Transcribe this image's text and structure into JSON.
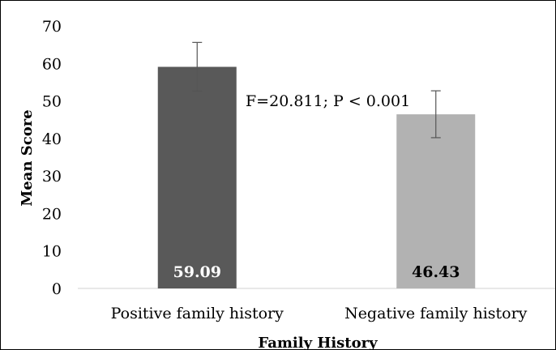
{
  "chart_data": {
    "type": "bar",
    "categories": [
      "Positive family history",
      "Negative family history"
    ],
    "values": [
      59.09,
      46.43
    ],
    "value_labels": [
      "59.09",
      "46.43"
    ],
    "error_bars": [
      [
        52.6,
        65.6
      ],
      [
        40.2,
        52.7
      ]
    ],
    "bar_colors": [
      "#595959",
      "#b2b2b2"
    ],
    "value_label_colors": [
      "#ffffff",
      "#000000"
    ],
    "xlabel": "Family History",
    "ylabel": "Mean Score",
    "ylim": [
      0,
      70
    ],
    "yticks": [
      0,
      10,
      20,
      30,
      40,
      50,
      60,
      70
    ],
    "yticklabels": [
      "0",
      "10",
      "20",
      "30",
      "40",
      "50",
      "60",
      "70"
    ],
    "grid": false,
    "annotation": "F=20.811; P < 0.001"
  }
}
